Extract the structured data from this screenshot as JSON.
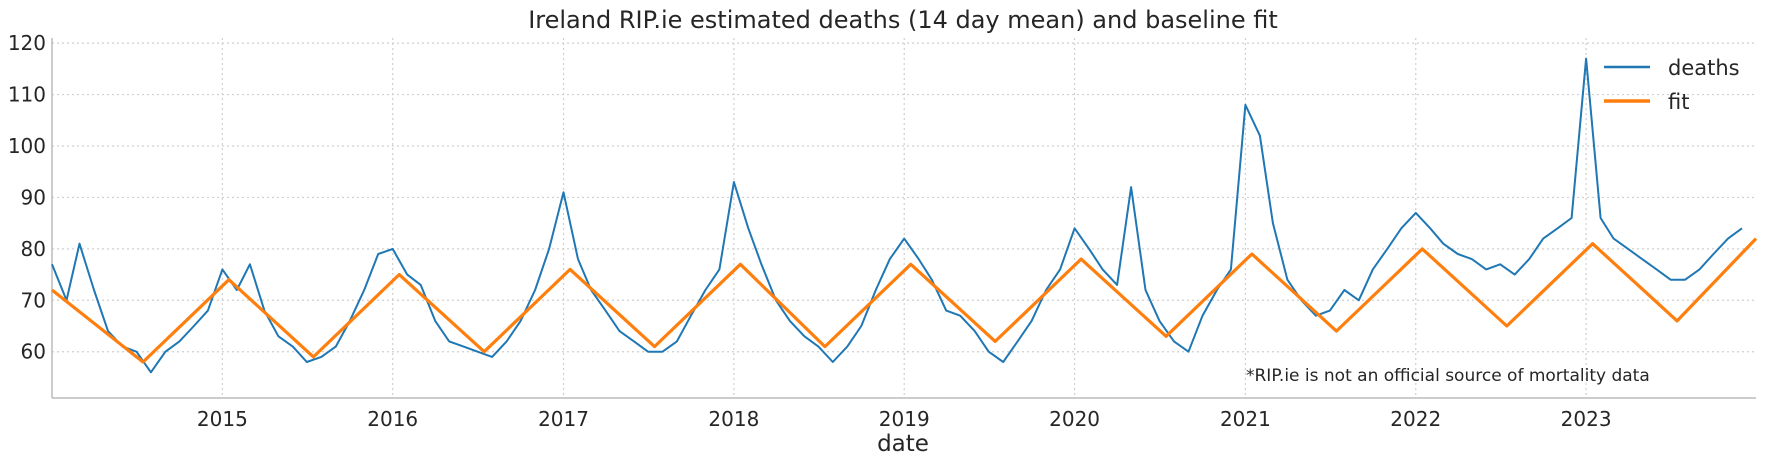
{
  "chart_data": {
    "type": "line",
    "title": "Ireland RIP.ie estimated deaths (14 day mean) and baseline fit",
    "xlabel": "date",
    "ylabel": "",
    "xlim": [
      "2014-01-01",
      "2023-12-31"
    ],
    "ylim": [
      51,
      121
    ],
    "x_ticks": [
      "2015",
      "2016",
      "2017",
      "2018",
      "2019",
      "2020",
      "2021",
      "2022",
      "2023"
    ],
    "y_ticks": [
      60,
      70,
      80,
      90,
      100,
      110,
      120
    ],
    "grid": true,
    "legend_position": "top-right",
    "annotation": "*RIP.ie is not an official source of mortality data",
    "colors": {
      "deaths": "#1f77b4",
      "fit": "#ff7f0e"
    },
    "series": [
      {
        "name": "deaths",
        "x": [
          "2014-01-01",
          "2014-02-01",
          "2014-03-01",
          "2014-04-01",
          "2014-05-01",
          "2014-06-01",
          "2014-07-01",
          "2014-08-01",
          "2014-09-01",
          "2014-10-01",
          "2014-11-01",
          "2014-12-01",
          "2015-01-01",
          "2015-02-01",
          "2015-03-01",
          "2015-04-01",
          "2015-05-01",
          "2015-06-01",
          "2015-07-01",
          "2015-08-01",
          "2015-09-01",
          "2015-10-01",
          "2015-11-01",
          "2015-12-01",
          "2016-01-01",
          "2016-02-01",
          "2016-03-01",
          "2016-04-01",
          "2016-05-01",
          "2016-06-01",
          "2016-07-01",
          "2016-08-01",
          "2016-09-01",
          "2016-10-01",
          "2016-11-01",
          "2016-12-01",
          "2017-01-01",
          "2017-02-01",
          "2017-03-01",
          "2017-04-01",
          "2017-05-01",
          "2017-06-01",
          "2017-07-01",
          "2017-08-01",
          "2017-09-01",
          "2017-10-01",
          "2017-11-01",
          "2017-12-01",
          "2018-01-01",
          "2018-02-01",
          "2018-03-01",
          "2018-04-01",
          "2018-05-01",
          "2018-06-01",
          "2018-07-01",
          "2018-08-01",
          "2018-09-01",
          "2018-10-01",
          "2018-11-01",
          "2018-12-01",
          "2019-01-01",
          "2019-02-01",
          "2019-03-01",
          "2019-04-01",
          "2019-05-01",
          "2019-06-01",
          "2019-07-01",
          "2019-08-01",
          "2019-09-01",
          "2019-10-01",
          "2019-11-01",
          "2019-12-01",
          "2020-01-01",
          "2020-02-01",
          "2020-03-01",
          "2020-04-01",
          "2020-05-01",
          "2020-06-01",
          "2020-07-01",
          "2020-08-01",
          "2020-09-01",
          "2020-10-01",
          "2020-11-01",
          "2020-12-01",
          "2021-01-01",
          "2021-02-01",
          "2021-03-01",
          "2021-04-01",
          "2021-05-01",
          "2021-06-01",
          "2021-07-01",
          "2021-08-01",
          "2021-09-01",
          "2021-10-01",
          "2021-11-01",
          "2021-12-01",
          "2022-01-01",
          "2022-02-01",
          "2022-03-01",
          "2022-04-01",
          "2022-05-01",
          "2022-06-01",
          "2022-07-01",
          "2022-08-01",
          "2022-09-01",
          "2022-10-01",
          "2022-11-01",
          "2022-12-01",
          "2023-01-01",
          "2023-02-01",
          "2023-03-01",
          "2023-04-01",
          "2023-05-01",
          "2023-06-01",
          "2023-07-01",
          "2023-08-01",
          "2023-09-01",
          "2023-10-01",
          "2023-11-01",
          "2023-12-01"
        ],
        "values": [
          77,
          70,
          81,
          72,
          64,
          61,
          60,
          56,
          60,
          62,
          65,
          68,
          76,
          72,
          77,
          68,
          63,
          61,
          58,
          59,
          61,
          66,
          72,
          79,
          80,
          75,
          73,
          66,
          62,
          61,
          60,
          59,
          62,
          66,
          72,
          80,
          91,
          78,
          72,
          68,
          64,
          62,
          60,
          60,
          62,
          67,
          72,
          76,
          93,
          84,
          77,
          70,
          66,
          63,
          61,
          58,
          61,
          65,
          72,
          78,
          82,
          78,
          74,
          68,
          67,
          64,
          60,
          58,
          62,
          66,
          72,
          76,
          84,
          80,
          76,
          73,
          92,
          72,
          66,
          62,
          60,
          67,
          72,
          76,
          108,
          102,
          85,
          74,
          70,
          67,
          68,
          72,
          70,
          76,
          80,
          84,
          87,
          84,
          81,
          79,
          78,
          76,
          77,
          75,
          78,
          82,
          84,
          86,
          117,
          86,
          82,
          80,
          78,
          76,
          74,
          74,
          76,
          79,
          82,
          84
        ]
      },
      {
        "name": "fit",
        "x": [
          "2014-01-01",
          "2014-07-15",
          "2015-01-15",
          "2015-07-15",
          "2016-01-15",
          "2016-07-15",
          "2017-01-15",
          "2017-07-15",
          "2018-01-15",
          "2018-07-15",
          "2019-01-15",
          "2019-07-15",
          "2020-01-15",
          "2020-07-15",
          "2021-01-15",
          "2021-07-15",
          "2022-01-15",
          "2022-07-15",
          "2023-01-15",
          "2023-07-15",
          "2023-12-31"
        ],
        "values": [
          72,
          58,
          74,
          59,
          75,
          60,
          76,
          61,
          77,
          61,
          77,
          62,
          78,
          63,
          79,
          64,
          80,
          65,
          81,
          66,
          82
        ]
      }
    ]
  }
}
